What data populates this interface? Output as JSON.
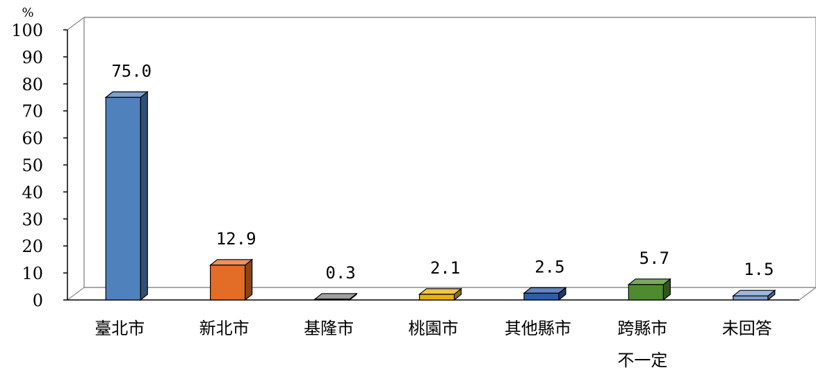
{
  "chart_data": {
    "type": "bar",
    "title": "",
    "xlabel": "",
    "ylabel": "",
    "unit": "%",
    "ylim": [
      0,
      100
    ],
    "yticks": [
      "0",
      "10",
      "20",
      "30",
      "40",
      "50",
      "60",
      "70",
      "80",
      "90",
      "100"
    ],
    "grid": false,
    "legend": "none",
    "categories": [
      {
        "lines": [
          "臺北市"
        ]
      },
      {
        "lines": [
          "新北市"
        ]
      },
      {
        "lines": [
          "基隆市"
        ]
      },
      {
        "lines": [
          "桃園市"
        ]
      },
      {
        "lines": [
          "其他縣市"
        ]
      },
      {
        "lines": [
          "跨縣市",
          "不一定"
        ]
      },
      {
        "lines": [
          "未回答"
        ]
      }
    ],
    "values": [
      75.0,
      12.9,
      0.3,
      2.1,
      2.5,
      5.7,
      1.5
    ],
    "value_labels": [
      "75.0",
      "12.9",
      "0.3",
      "2.1",
      "2.5",
      "5.7",
      "1.5"
    ],
    "colors": [
      "#4f81bd",
      "#e36c26",
      "#7f7f7f",
      "#e8b10a",
      "#2e5ea8",
      "#4e8b2e",
      "#7ea0d0"
    ]
  }
}
